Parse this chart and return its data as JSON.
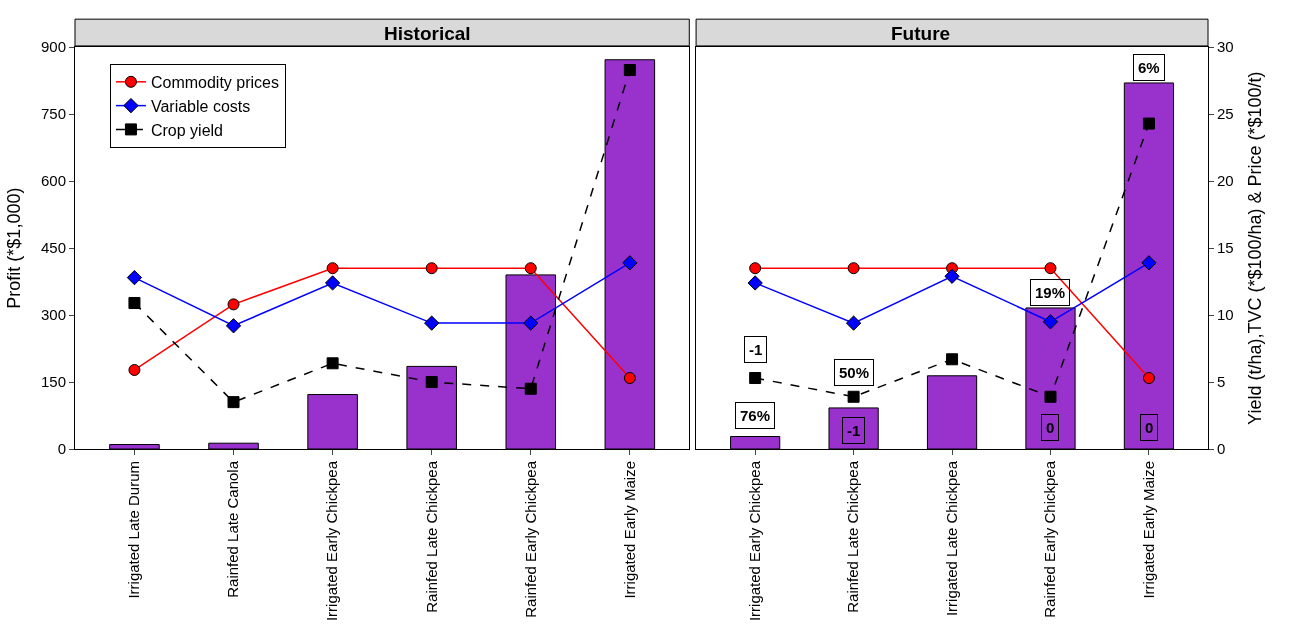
{
  "chart_data": [
    {
      "type": "bar",
      "title": "Historical",
      "ylabel": "Profit (*$1,000)",
      "legend": "top left",
      "categories": [
        "Irrigated Late Durum",
        "Rainfed Late Canola",
        "Irrigated Early Chickpea",
        "Rainfed Late Chickpea",
        "Rainfed Early Chickpea",
        "Irrigated Early Maize"
      ],
      "ylim": [
        0,
        900
      ],
      "yticks": [
        0,
        150,
        300,
        450,
        600,
        750,
        900
      ],
      "y2lim": [
        0,
        30
      ],
      "series": [
        {
          "color": "#9932cc",
          "values": [
            10,
            13,
            122,
            185,
            390,
            872
          ]
        },
        {
          "type": "line",
          "name": "Commodity prices",
          "axis": "y2",
          "color": "#ff0000",
          "marker": "circle",
          "line_style": "solid",
          "values": [
            5.9,
            10.8,
            13.5,
            13.5,
            13.5,
            5.3
          ]
        },
        {
          "type": "line",
          "name": "Variable costs",
          "axis": "y2",
          "color": "#0000ff",
          "marker": "diamond",
          "line_style": "solid",
          "values": [
            12.8,
            9.2,
            12.4,
            9.4,
            9.4,
            13.9
          ]
        },
        {
          "type": "line",
          "name": "Crop yield",
          "axis": "y2",
          "color": "#000000",
          "marker": "square",
          "line_style": "dashed",
          "values": [
            10.9,
            3.5,
            6.4,
            5.0,
            4.5,
            28.3
          ]
        }
      ]
    },
    {
      "type": "bar",
      "title": "Future",
      "y2label": "Yield (t/ha),TVC (*$100/ha) & Price (*$100/t)",
      "categories": [
        "Irrigated Early Chickpea",
        "Rainfed Late Chickpea",
        "Irrigated Late Chickpea",
        "Rainfed Early Chickpea",
        "Irrigated Early Maize"
      ],
      "ylim": [
        0,
        900
      ],
      "y2lim": [
        0,
        30
      ],
      "y2ticks": [
        0,
        5,
        10,
        15,
        20,
        25,
        30
      ],
      "series": [
        {
          "color": "#9932cc",
          "values": [
            28,
            92,
            164,
            316,
            820
          ]
        },
        {
          "type": "line",
          "axis": "y2",
          "color": "#ff0000",
          "marker": "circle",
          "line_style": "solid",
          "values": [
            13.5,
            13.5,
            13.5,
            13.5,
            5.3
          ]
        },
        {
          "type": "line",
          "axis": "y2",
          "color": "#0000ff",
          "marker": "diamond",
          "line_style": "solid",
          "values": [
            12.4,
            9.4,
            12.9,
            9.5,
            13.9
          ]
        },
        {
          "type": "line",
          "axis": "y2",
          "color": "#000000",
          "marker": "square",
          "line_style": "dashed",
          "values": [
            5.3,
            3.9,
            6.7,
            3.9,
            24.3
          ]
        }
      ],
      "annotations": [
        {
          "text": "76%",
          "x": "Irrigated Early Chickpea",
          "y": 75
        },
        {
          "text": "-1",
          "x": "Irrigated Early Chickpea",
          "y": 222
        },
        {
          "text": "50%",
          "x": "Rainfed Late Chickpea",
          "y": 172
        },
        {
          "text": "-1",
          "x": "Rainfed Late Chickpea",
          "y": 42
        },
        {
          "text": "19%",
          "x": "Rainfed Early Chickpea",
          "y": 351
        },
        {
          "text": "0",
          "x": "Rainfed Early Chickpea",
          "y": 48
        },
        {
          "text": "6%",
          "x": "Irrigated Early Maize",
          "y": 855
        },
        {
          "text": "0",
          "x": "Irrigated Early Maize",
          "y": 48
        }
      ]
    }
  ]
}
